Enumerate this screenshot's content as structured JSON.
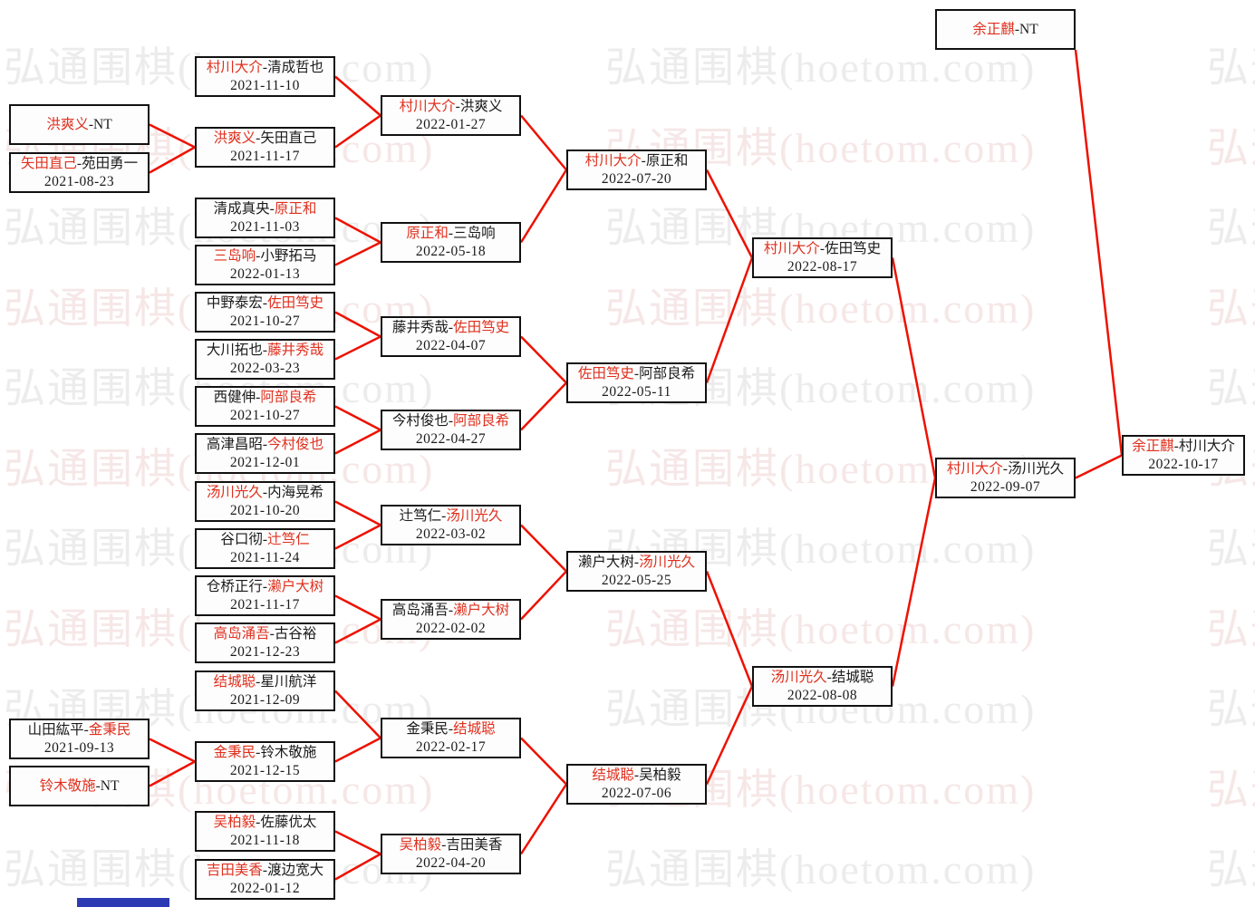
{
  "watermark": {
    "text": "弘通围棋(hoetom.com)"
  },
  "colors": {
    "winner_red": "#e0301e",
    "line_red": "#ee1100",
    "box_border": "#111111",
    "watermark_gray": "#ececec",
    "watermark_pink": "#f6e7e7",
    "blue_strip": "#2c3bb3",
    "background": "#ffffff"
  },
  "bracket": {
    "matches": [
      {
        "id": "m01",
        "p1": "洪爽义",
        "p2": "NT",
        "red": 1,
        "date": ""
      },
      {
        "id": "m02",
        "p1": "矢田直己",
        "p2": "苑田勇一",
        "red": 1,
        "date": "2021-08-23"
      },
      {
        "id": "m03",
        "p1": "山田紘平",
        "p2": "金秉民",
        "red": 2,
        "date": "2021-09-13"
      },
      {
        "id": "m04",
        "p1": "铃木敬施",
        "p2": "NT",
        "red": 1,
        "date": ""
      },
      {
        "id": "m05",
        "p1": "村川大介",
        "p2": "清成哲也",
        "red": 1,
        "date": "2021-11-10"
      },
      {
        "id": "m06",
        "p1": "洪爽义",
        "p2": "矢田直己",
        "red": 1,
        "date": "2021-11-17"
      },
      {
        "id": "m07",
        "p1": "清成真央",
        "p2": "原正和",
        "red": 2,
        "date": "2021-11-03"
      },
      {
        "id": "m08",
        "p1": "三岛响",
        "p2": "小野拓马",
        "red": 1,
        "date": "2022-01-13"
      },
      {
        "id": "m09",
        "p1": "中野泰宏",
        "p2": "佐田笃史",
        "red": 2,
        "date": "2021-10-27"
      },
      {
        "id": "m10",
        "p1": "大川拓也",
        "p2": "藤井秀哉",
        "red": 2,
        "date": "2022-03-23"
      },
      {
        "id": "m11",
        "p1": "西健伸",
        "p2": "阿部良希",
        "red": 2,
        "date": "2021-10-27"
      },
      {
        "id": "m12",
        "p1": "高津昌昭",
        "p2": "今村俊也",
        "red": 2,
        "date": "2021-12-01"
      },
      {
        "id": "m13",
        "p1": "汤川光久",
        "p2": "内海晃希",
        "red": 1,
        "date": "2021-10-20"
      },
      {
        "id": "m14",
        "p1": "谷口彻",
        "p2": "辻笃仁",
        "red": 2,
        "date": "2021-11-24"
      },
      {
        "id": "m15",
        "p1": "仓桥正行",
        "p2": "濑户大树",
        "red": 2,
        "date": "2021-11-17"
      },
      {
        "id": "m16",
        "p1": "高岛涌吾",
        "p2": "古谷裕",
        "red": 1,
        "date": "2021-12-23"
      },
      {
        "id": "m17",
        "p1": "结城聪",
        "p2": "星川航洋",
        "red": 1,
        "date": "2021-12-09"
      },
      {
        "id": "m18",
        "p1": "金秉民",
        "p2": "铃木敬施",
        "red": 1,
        "date": "2021-12-15"
      },
      {
        "id": "m19",
        "p1": "吴柏毅",
        "p2": "佐藤优太",
        "red": 1,
        "date": "2021-11-18"
      },
      {
        "id": "m20",
        "p1": "吉田美香",
        "p2": "渡边宽大",
        "red": 1,
        "date": "2022-01-12"
      },
      {
        "id": "m21",
        "p1": "村川大介",
        "p2": "洪爽义",
        "red": 1,
        "date": "2022-01-27"
      },
      {
        "id": "m22",
        "p1": "原正和",
        "p2": "三岛响",
        "red": 1,
        "date": "2022-05-18"
      },
      {
        "id": "m23",
        "p1": "藤井秀哉",
        "p2": "佐田笃史",
        "red": 2,
        "date": "2022-04-07"
      },
      {
        "id": "m24",
        "p1": "今村俊也",
        "p2": "阿部良希",
        "red": 2,
        "date": "2022-04-27"
      },
      {
        "id": "m25",
        "p1": "辻笃仁",
        "p2": "汤川光久",
        "red": 2,
        "date": "2022-03-02"
      },
      {
        "id": "m26",
        "p1": "高岛涌吾",
        "p2": "濑户大树",
        "red": 2,
        "date": "2022-02-02"
      },
      {
        "id": "m27",
        "p1": "金秉民",
        "p2": "结城聪",
        "red": 2,
        "date": "2022-02-17"
      },
      {
        "id": "m28",
        "p1": "吴柏毅",
        "p2": "吉田美香",
        "red": 1,
        "date": "2022-04-20"
      },
      {
        "id": "m29",
        "p1": "村川大介",
        "p2": "原正和",
        "red": 1,
        "date": "2022-07-20"
      },
      {
        "id": "m30",
        "p1": "佐田笃史",
        "p2": "阿部良希",
        "red": 1,
        "date": "2022-05-11"
      },
      {
        "id": "m31",
        "p1": "濑户大树",
        "p2": "汤川光久",
        "red": 2,
        "date": "2022-05-25"
      },
      {
        "id": "m32",
        "p1": "结城聪",
        "p2": "吴柏毅",
        "red": 1,
        "date": "2022-07-06"
      },
      {
        "id": "m33",
        "p1": "村川大介",
        "p2": "佐田笃史",
        "red": 1,
        "date": "2022-08-17"
      },
      {
        "id": "m34",
        "p1": "汤川光久",
        "p2": "结城聪",
        "red": 1,
        "date": "2022-08-08"
      },
      {
        "id": "m35",
        "p1": "余正麒",
        "p2": "NT",
        "red": 1,
        "date": ""
      },
      {
        "id": "m36",
        "p1": "村川大介",
        "p2": "汤川光久",
        "red": 1,
        "date": "2022-09-07"
      },
      {
        "id": "m37",
        "p1": "余正麒",
        "p2": "村川大介",
        "red": 1,
        "date": "2022-10-17"
      }
    ],
    "connections": [
      [
        "m01",
        "m06"
      ],
      [
        "m02",
        "m06"
      ],
      [
        "m05",
        "m21"
      ],
      [
        "m06",
        "m21"
      ],
      [
        "m07",
        "m22"
      ],
      [
        "m08",
        "m22"
      ],
      [
        "m09",
        "m23"
      ],
      [
        "m10",
        "m23"
      ],
      [
        "m11",
        "m24"
      ],
      [
        "m12",
        "m24"
      ],
      [
        "m13",
        "m25"
      ],
      [
        "m14",
        "m25"
      ],
      [
        "m15",
        "m26"
      ],
      [
        "m16",
        "m26"
      ],
      [
        "m03",
        "m18"
      ],
      [
        "m04",
        "m18"
      ],
      [
        "m17",
        "m27"
      ],
      [
        "m18",
        "m27"
      ],
      [
        "m19",
        "m28"
      ],
      [
        "m20",
        "m28"
      ],
      [
        "m21",
        "m29"
      ],
      [
        "m22",
        "m29"
      ],
      [
        "m23",
        "m30"
      ],
      [
        "m24",
        "m30"
      ],
      [
        "m25",
        "m31"
      ],
      [
        "m26",
        "m31"
      ],
      [
        "m27",
        "m32"
      ],
      [
        "m28",
        "m32"
      ],
      [
        "m29",
        "m33"
      ],
      [
        "m30",
        "m33"
      ],
      [
        "m31",
        "m34"
      ],
      [
        "m32",
        "m34"
      ],
      [
        "m33",
        "m36"
      ],
      [
        "m34",
        "m36"
      ],
      [
        "m35",
        "m37"
      ],
      [
        "m36",
        "m37"
      ]
    ]
  }
}
